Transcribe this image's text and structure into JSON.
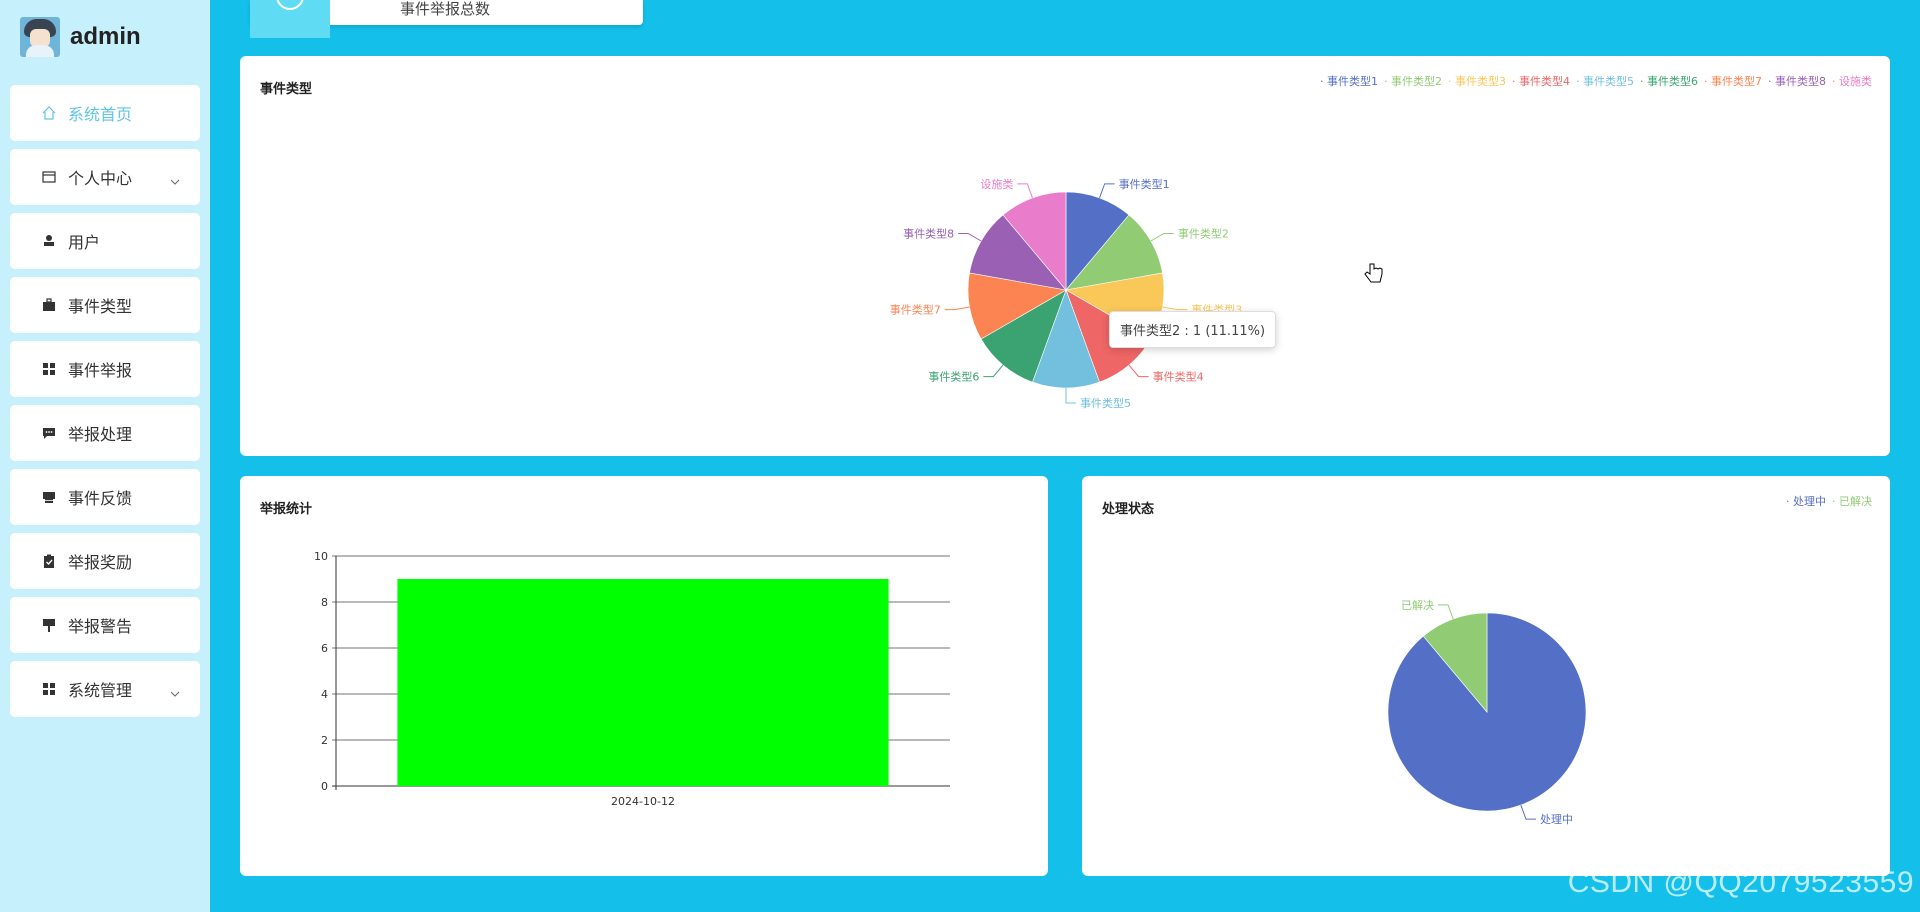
{
  "user": {
    "name": "admin"
  },
  "menu": [
    {
      "label": "系统首页",
      "icon": "home-icon",
      "active": true
    },
    {
      "label": "个人中心",
      "icon": "card-icon",
      "expandable": true
    },
    {
      "label": "用户",
      "icon": "user-icon"
    },
    {
      "label": "事件类型",
      "icon": "briefcase-icon"
    },
    {
      "label": "事件举报",
      "icon": "grid-icon"
    },
    {
      "label": "举报处理",
      "icon": "chat-icon"
    },
    {
      "label": "事件反馈",
      "icon": "printer-icon"
    },
    {
      "label": "举报奖励",
      "icon": "clipboard-check-icon"
    },
    {
      "label": "举报警告",
      "icon": "sign-icon"
    },
    {
      "label": "系统管理",
      "icon": "grid-icon",
      "expandable": true
    }
  ],
  "top_card": {
    "label": "事件举报总数"
  },
  "panels": {
    "event_type": {
      "title": "事件类型"
    },
    "report_stats": {
      "title": "举报统计"
    },
    "status": {
      "title": "处理状态"
    }
  },
  "tooltip": {
    "text": "事件类型2 : 1 (11.11%)"
  },
  "watermark": "CSDN @QQ2079523559",
  "chart_data": [
    {
      "type": "pie",
      "title": "事件类型",
      "legend_position": "top-right",
      "categories": [
        "事件类型1",
        "事件类型2",
        "事件类型3",
        "事件类型4",
        "事件类型5",
        "事件类型6",
        "事件类型7",
        "事件类型8",
        "设施类"
      ],
      "values": [
        1,
        1,
        1,
        1,
        1,
        1,
        1,
        1,
        1
      ],
      "colors": [
        "#5470c6",
        "#91cc75",
        "#fac858",
        "#ee6666",
        "#73c0de",
        "#3ba272",
        "#fc8452",
        "#9a60b4",
        "#ea7ccc"
      ]
    },
    {
      "type": "bar",
      "title": "举报统计",
      "categories": [
        "2024-10-12"
      ],
      "values": [
        9
      ],
      "ylim": [
        0,
        10
      ],
      "yticks": [
        0,
        2,
        4,
        6,
        8,
        10
      ],
      "grid": true,
      "color": "#00ff00"
    },
    {
      "type": "pie",
      "title": "处理状态",
      "legend_position": "top-right",
      "categories": [
        "处理中",
        "已解决"
      ],
      "values": [
        8,
        1
      ],
      "colors": [
        "#5470c6",
        "#91cc75"
      ]
    }
  ]
}
